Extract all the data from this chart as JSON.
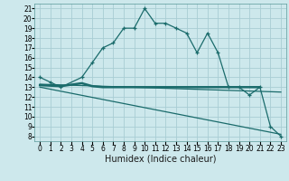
{
  "title": "",
  "xlabel": "Humidex (Indice chaleur)",
  "bg_color": "#cde8ec",
  "grid_color": "#a8cdd4",
  "line_color": "#1a6b6b",
  "xlim": [
    -0.5,
    23.5
  ],
  "ylim": [
    7.5,
    21.5
  ],
  "xticks": [
    0,
    1,
    2,
    3,
    4,
    5,
    6,
    7,
    8,
    9,
    10,
    11,
    12,
    13,
    14,
    15,
    16,
    17,
    18,
    19,
    20,
    21,
    22,
    23
  ],
  "yticks": [
    8,
    9,
    10,
    11,
    12,
    13,
    14,
    15,
    16,
    17,
    18,
    19,
    20,
    21
  ],
  "line1_x": [
    0,
    1,
    2,
    4,
    5,
    6,
    7,
    8,
    9,
    10,
    11,
    12,
    13,
    14,
    15,
    16,
    17,
    18,
    19,
    20,
    21,
    22,
    23
  ],
  "line1_y": [
    14,
    13.5,
    13,
    14,
    15.5,
    17,
    17.5,
    19,
    19,
    21,
    19.5,
    19.5,
    19,
    18.5,
    16.5,
    18.5,
    16.5,
    13,
    13,
    12.2,
    13,
    9,
    8
  ],
  "line2_x": [
    0,
    2,
    4,
    5,
    6,
    7,
    8,
    9,
    10,
    11,
    12,
    13,
    14,
    15,
    16,
    18,
    19,
    20,
    21
  ],
  "line2_y": [
    13.2,
    13.1,
    13.4,
    13.1,
    13.0,
    13.0,
    13.0,
    13.0,
    13.0,
    13.0,
    13.0,
    13.0,
    13.0,
    13.0,
    13.0,
    13.0,
    13.0,
    13.0,
    13.0
  ],
  "line3_x": [
    0,
    23
  ],
  "line3_y": [
    13.3,
    12.5
  ],
  "line4_x": [
    0,
    23
  ],
  "line4_y": [
    13.0,
    8.2
  ],
  "tick_fontsize": 5.5,
  "xlabel_fontsize": 7
}
